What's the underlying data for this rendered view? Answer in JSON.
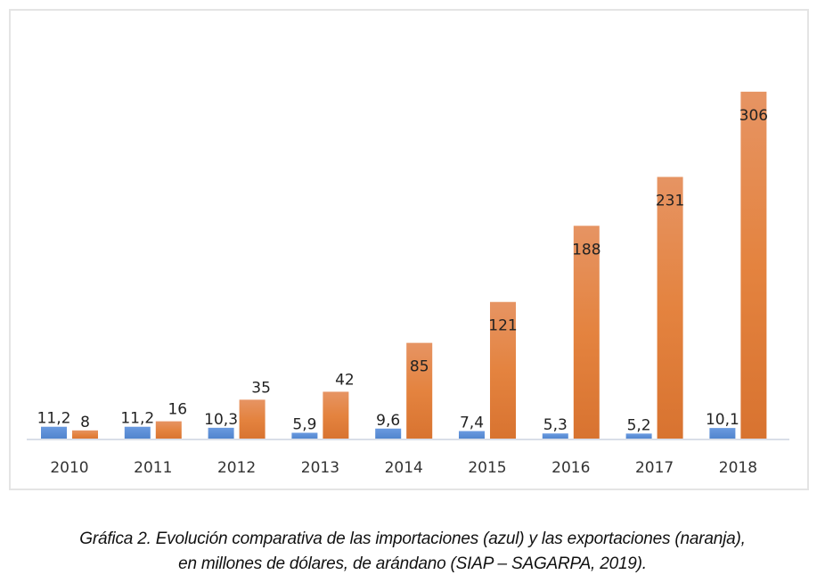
{
  "chart_data": {
    "type": "bar",
    "title": "",
    "xlabel": "",
    "ylabel": "",
    "categories": [
      "2010",
      "2011",
      "2012",
      "2013",
      "2014",
      "2015",
      "2016",
      "2017",
      "2018"
    ],
    "series": [
      {
        "name": "Importaciones (azul)",
        "color": "#5b8fd6",
        "values": [
          11.2,
          11.2,
          10.3,
          5.9,
          9.6,
          7.4,
          5.3,
          5.2,
          10.1
        ],
        "labels": [
          "11,2",
          "11,2",
          "10,3",
          "5,9",
          "9,6",
          "7,4",
          "5,3",
          "5,2",
          "10,1"
        ]
      },
      {
        "name": "Exportaciones (naranja)",
        "color": "#e07d3a",
        "values": [
          8,
          16,
          35,
          42,
          85,
          121,
          188,
          231,
          306
        ],
        "labels": [
          "8",
          "16",
          "35",
          "42",
          "85",
          "121",
          "188",
          "231",
          "306"
        ]
      }
    ],
    "ylim": [
      0,
      320
    ],
    "grid": false,
    "legend": "none",
    "axis_line_color": "#d9dee8"
  },
  "caption": {
    "line1": "Gráfica 2. Evolución comparativa de las importaciones (azul) y las exportaciones (naranja),",
    "line2": "en millones de dólares, de arándano (SIAP – SAGARPA, 2019)."
  }
}
